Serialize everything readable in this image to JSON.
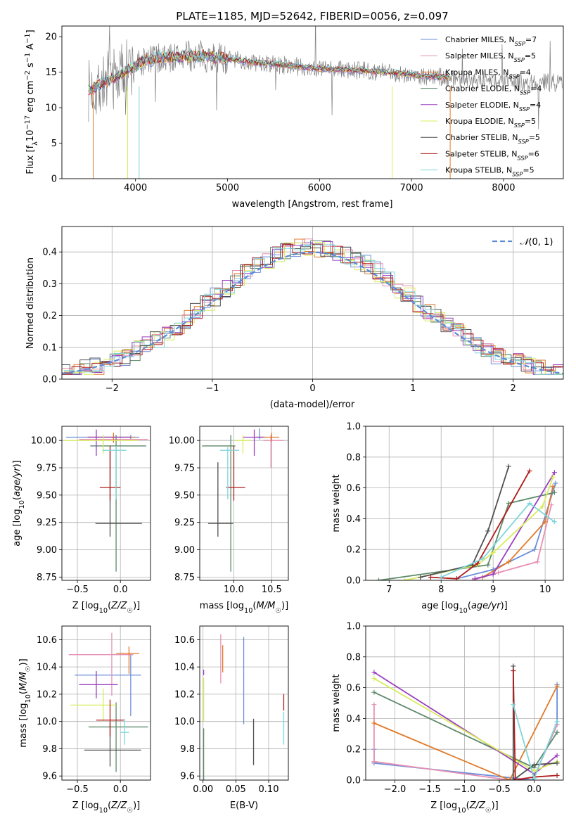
{
  "title": "PLATE=1185, MJD=52642, FIBERID=0056, z=0.097",
  "colors": {
    "Chabrier MILES": "#6a8ed8",
    "Salpeter MILES": "#e78fb3",
    "Kroupa MILES": "#e07a2a",
    "Chabrier ELODIE": "#5d8a6a",
    "Salpeter ELODIE": "#9a3fc0",
    "Kroupa ELODIE": "#d8ec5c",
    "Chabrier STELIB": "#505050",
    "Salpeter STELIB": "#b01c1c",
    "Kroupa STELIB": "#7fd6da"
  },
  "chart_data": [
    {
      "id": "spectrum",
      "type": "line",
      "xlabel": "wavelength [Angstrom, rest frame]",
      "ylabel": "Flux [f_λ 10^-17 erg cm^-2 s^-1 A^-1]",
      "xlim": [
        3200,
        8650
      ],
      "ylim": [
        0,
        21.5
      ],
      "xticks": [
        4000,
        5000,
        6000,
        7000,
        8000
      ],
      "yticks": [
        0,
        5,
        10,
        15,
        20
      ],
      "legend_position": "right",
      "legend": [
        {
          "model": "Chabrier MILES",
          "nssp": "7"
        },
        {
          "model": "Salpeter MILES",
          "nssp": "5"
        },
        {
          "model": "Kroupa MILES",
          "nssp": "4"
        },
        {
          "model": "Chabrier ELODIE",
          "nssp": "4"
        },
        {
          "model": "Salpeter ELODIE",
          "nssp": "4"
        },
        {
          "model": "Kroupa ELODIE",
          "nssp": "5"
        },
        {
          "model": "Chabrier STELIB",
          "nssp": "5"
        },
        {
          "model": "Salpeter STELIB",
          "nssp": "6"
        },
        {
          "model": "Kroupa STELIB",
          "nssp": "5"
        }
      ],
      "continuum": {
        "x": [
          3500,
          3700,
          3900,
          4100,
          4300,
          4500,
          4700,
          4900,
          5100,
          5300,
          5500,
          5700,
          5900,
          6100,
          6300,
          6500,
          6700,
          6900,
          7100,
          7300,
          7500,
          7700,
          7900,
          8100,
          8300,
          8600
        ],
        "y": [
          12.4,
          13.8,
          15.2,
          16.6,
          17.0,
          17.2,
          17.3,
          17.0,
          16.7,
          16.3,
          16.1,
          15.9,
          15.6,
          15.4,
          15.3,
          15.2,
          15.0,
          14.8,
          14.5,
          14.3,
          14.2,
          14.0,
          13.8,
          13.7,
          13.6,
          13.5
        ]
      },
      "data_range": [
        3490,
        8640
      ],
      "model_range": [
        3490,
        7420
      ]
    },
    {
      "id": "residuals",
      "type": "line",
      "xlabel": "(data-model)/error",
      "ylabel": "Normed distribution",
      "xlim": [
        -2.5,
        2.5
      ],
      "ylim": [
        0,
        0.48
      ],
      "xticks": [
        -2,
        -1,
        0,
        1,
        2
      ],
      "yticks": [
        0.0,
        0.1,
        0.2,
        0.3,
        0.4
      ],
      "legend": [
        "N(0,1)"
      ],
      "legend_position": "top-right",
      "grid": true
    },
    {
      "id": "age-vs-Z",
      "type": "scatter",
      "xlabel": "Z [log10(Z/Z☉)]",
      "ylabel": "age  [log10(age/yr)]",
      "xlim": [
        -0.68,
        0.35
      ],
      "ylim": [
        8.72,
        10.13
      ],
      "xticks": [
        -0.5,
        0.0
      ],
      "yticks": [
        8.75,
        9.0,
        9.25,
        9.5,
        9.75,
        10.0
      ],
      "grid": true,
      "points": [
        {
          "model": "Chabrier MILES",
          "x": 0.12,
          "y": 10.03,
          "xerr": [
            0.75,
            0.1
          ],
          "yerr": [
            0.02,
            0.02
          ]
        },
        {
          "model": "Salpeter MILES",
          "x": -0.08,
          "y": 10.01,
          "xerr": [
            0.4,
            0.4
          ],
          "yerr": [
            0.03,
            0.03
          ]
        },
        {
          "model": "Kroupa MILES",
          "x": -0.08,
          "y": 10.03,
          "xerr": [
            0.3,
            0.25
          ],
          "yerr": [
            0.05,
            0.04
          ]
        },
        {
          "model": "Chabrier ELODIE",
          "x": -0.05,
          "y": 9.95,
          "xerr": [
            0.3,
            0.35
          ],
          "yerr": [
            1.15,
            0.1
          ]
        },
        {
          "model": "Salpeter ELODIE",
          "x": -0.28,
          "y": 10.03,
          "xerr": [
            0.1,
            0.4
          ],
          "yerr": [
            0.17,
            0.07
          ]
        },
        {
          "model": "Kroupa ELODIE",
          "x": -0.2,
          "y": 10.0,
          "xerr": [
            0.45,
            0.4
          ],
          "yerr": [
            0.12,
            0.05
          ]
        },
        {
          "model": "Chabrier STELIB",
          "x": -0.12,
          "y": 9.24,
          "xerr": [
            0.17,
            0.37
          ],
          "yerr": [
            0.12,
            0.68
          ]
        },
        {
          "model": "Salpeter STELIB",
          "x": -0.12,
          "y": 9.57,
          "xerr": [
            0.12,
            0.12
          ],
          "yerr": [
            0.12,
            0.38
          ]
        },
        {
          "model": "Kroupa STELIB",
          "x": -0.05,
          "y": 9.91,
          "xerr": [
            0.16,
            0.12
          ],
          "yerr": [
            0.45,
            0.04
          ]
        }
      ]
    },
    {
      "id": "age-vs-mass",
      "type": "scatter",
      "xlabel": "mass [log10(M/M☉)]",
      "ylabel": "",
      "xlim": [
        9.55,
        10.72
      ],
      "ylim": [
        8.72,
        10.13
      ],
      "xticks": [
        10.0,
        10.5
      ],
      "yticks": [
        8.75,
        9.0,
        9.25,
        9.5,
        9.75,
        10.0
      ],
      "grid": true,
      "points": [
        {
          "model": "Chabrier MILES",
          "x": 10.34,
          "y": 10.03,
          "xerr": [
            0.05,
            0.08
          ],
          "yerr": [
            0.02,
            0.08
          ]
        },
        {
          "model": "Salpeter MILES",
          "x": 10.49,
          "y": 10.0,
          "xerr": [
            0.1,
            0.17
          ],
          "yerr": [
            0.25,
            0.05
          ]
        },
        {
          "model": "Kroupa MILES",
          "x": 10.5,
          "y": 10.03,
          "xerr": [
            0.18,
            0.1
          ],
          "yerr": [
            0.04,
            0.04
          ]
        },
        {
          "model": "Chabrier ELODIE",
          "x": 9.96,
          "y": 9.95,
          "xerr": [
            0.38,
            0.06
          ],
          "yerr": [
            1.15,
            0.1
          ]
        },
        {
          "model": "Salpeter ELODIE",
          "x": 10.27,
          "y": 10.03,
          "xerr": [
            0.15,
            0.12
          ],
          "yerr": [
            0.17,
            0.07
          ]
        },
        {
          "model": "Kroupa ELODIE",
          "x": 10.12,
          "y": 10.0,
          "xerr": [
            0.1,
            0.1
          ],
          "yerr": [
            0.12,
            0.05
          ]
        },
        {
          "model": "Chabrier STELIB",
          "x": 9.79,
          "y": 9.24,
          "xerr": [
            0.13,
            0.2
          ],
          "yerr": [
            0.12,
            0.56
          ]
        },
        {
          "model": "Salpeter STELIB",
          "x": 10.0,
          "y": 9.57,
          "xerr": [
            0.1,
            0.15
          ],
          "yerr": [
            0.12,
            0.38
          ]
        },
        {
          "model": "Kroupa STELIB",
          "x": 9.92,
          "y": 9.91,
          "xerr": [
            0.1,
            0.15
          ],
          "yerr": [
            0.45,
            0.03
          ]
        }
      ]
    },
    {
      "id": "massweight-vs-age",
      "type": "line",
      "xlabel": "age  [log10(age/yr)]",
      "ylabel": "mass weight",
      "xlim": [
        6.55,
        10.35
      ],
      "ylim": [
        0,
        1.0
      ],
      "xticks": [
        7,
        8,
        9,
        10
      ],
      "yticks": [
        0.0,
        0.2,
        0.4,
        0.6,
        0.8,
        1.0
      ],
      "grid": true,
      "series": [
        {
          "name": "Chabrier MILES",
          "x": [
            8.3,
            9.0,
            9.8,
            10.2
          ],
          "y": [
            0.01,
            0.07,
            0.2,
            0.63
          ]
        },
        {
          "name": "Salpeter MILES",
          "x": [
            8.6,
            9.1,
            9.85,
            10.12
          ],
          "y": [
            0.0,
            0.05,
            0.12,
            0.49
          ]
        },
        {
          "name": "Kroupa MILES",
          "x": [
            8.8,
            9.3,
            10.0,
            10.15
          ],
          "y": [
            0.02,
            0.12,
            0.38,
            0.61
          ]
        },
        {
          "name": "Chabrier ELODIE",
          "x": [
            6.8,
            8.9,
            9.3,
            10.18
          ],
          "y": [
            0.0,
            0.1,
            0.5,
            0.57
          ]
        },
        {
          "name": "Salpeter ELODIE",
          "x": [
            8.65,
            9.0,
            10.18
          ],
          "y": [
            0.01,
            0.04,
            0.7
          ]
        },
        {
          "name": "Kroupa ELODIE",
          "x": [
            7.3,
            8.7,
            9.0,
            9.95,
            10.15
          ],
          "y": [
            0.0,
            0.1,
            0.18,
            0.48,
            0.67
          ]
        },
        {
          "name": "Chabrier STELIB",
          "x": [
            7.6,
            8.6,
            8.9,
            9.3
          ],
          "y": [
            0.02,
            0.1,
            0.32,
            0.74
          ]
        },
        {
          "name": "Salpeter STELIB",
          "x": [
            7.8,
            8.3,
            8.7,
            9.7
          ],
          "y": [
            0.02,
            0.01,
            0.11,
            0.71
          ]
        },
        {
          "name": "Kroupa STELIB",
          "x": [
            8.0,
            8.8,
            9.7,
            10.18
          ],
          "y": [
            0.02,
            0.14,
            0.5,
            0.38
          ]
        }
      ]
    },
    {
      "id": "mass-vs-Z",
      "type": "scatter",
      "xlabel": "Z [log10(Z/Z☉)]",
      "ylabel": "mass [log10(M/M☉)]",
      "xlim": [
        -0.68,
        0.35
      ],
      "ylim": [
        9.57,
        10.7
      ],
      "xticks": [
        -0.5,
        0.0
      ],
      "yticks": [
        9.6,
        9.8,
        10.0,
        10.2,
        10.4,
        10.6
      ],
      "grid": true,
      "points": [
        {
          "model": "Chabrier MILES",
          "x": 0.12,
          "y": 10.34,
          "xerr": [
            0.65,
            0.12
          ],
          "yerr": [
            0.3,
            0.15
          ]
        },
        {
          "model": "Salpeter MILES",
          "x": -0.1,
          "y": 10.49,
          "xerr": [
            0.5,
            0.25
          ],
          "yerr": [
            0.3,
            0.16
          ]
        },
        {
          "model": "Kroupa MILES",
          "x": 0.1,
          "y": 10.5,
          "xerr": [
            0.15,
            0.12
          ],
          "yerr": [
            0.15,
            0.05
          ]
        },
        {
          "model": "Chabrier ELODIE",
          "x": -0.05,
          "y": 9.96,
          "xerr": [
            0.32,
            0.37
          ],
          "yerr": [
            0.33,
            0.18
          ]
        },
        {
          "model": "Salpeter ELODIE",
          "x": -0.28,
          "y": 10.27,
          "xerr": [
            0.2,
            0.25
          ],
          "yerr": [
            0.1,
            0.1
          ]
        },
        {
          "model": "Kroupa ELODIE",
          "x": -0.2,
          "y": 10.12,
          "xerr": [
            0.38,
            0.15
          ],
          "yerr": [
            0.12,
            0.12
          ]
        },
        {
          "model": "Chabrier STELIB",
          "x": -0.12,
          "y": 9.79,
          "xerr": [
            0.3,
            0.36
          ],
          "yerr": [
            0.12,
            0.2
          ]
        },
        {
          "model": "Salpeter STELIB",
          "x": -0.12,
          "y": 10.01,
          "xerr": [
            0.16,
            0.16
          ],
          "yerr": [
            0.12,
            0.15
          ]
        },
        {
          "model": "Kroupa STELIB",
          "x": 0.05,
          "y": 9.92,
          "xerr": [
            0.05,
            0.05
          ],
          "yerr": [
            0.09,
            0.1
          ]
        }
      ]
    },
    {
      "id": "mass-vs-EBV",
      "type": "scatter",
      "xlabel": "E(B-V)",
      "ylabel": "",
      "xlim": [
        -0.005,
        0.13
      ],
      "ylim": [
        9.57,
        10.7
      ],
      "xticks": [
        0.0,
        0.05,
        0.1
      ],
      "yticks": [
        9.6,
        9.8,
        10.0,
        10.2,
        10.4,
        10.6
      ],
      "grid": true,
      "points": [
        {
          "model": "Chabrier MILES",
          "x": 0.062,
          "y": 10.3,
          "yerr": [
            0.32,
            0.32
          ]
        },
        {
          "model": "Salpeter MILES",
          "x": 0.027,
          "y": 10.46,
          "yerr": [
            0.18,
            0.18
          ]
        },
        {
          "model": "Kroupa MILES",
          "x": 0.03,
          "y": 10.46,
          "yerr": [
            0.1,
            0.1
          ]
        },
        {
          "model": "Chabrier ELODIE",
          "x": 0.001,
          "y": 9.75,
          "yerr": [
            0.18,
            0.2
          ]
        },
        {
          "model": "Salpeter ELODIE",
          "x": 0.001,
          "y": 10.36,
          "yerr": [
            0.02,
            0.02
          ]
        },
        {
          "model": "Kroupa ELODIE",
          "x": 0.001,
          "y": 10.12,
          "yerr": [
            0.12,
            0.2
          ]
        },
        {
          "model": "Chabrier STELIB",
          "x": 0.077,
          "y": 9.85,
          "yerr": [
            0.17,
            0.17
          ]
        },
        {
          "model": "Salpeter STELIB",
          "x": 0.123,
          "y": 10.14,
          "yerr": [
            0.06,
            0.06
          ]
        },
        {
          "model": "Kroupa STELIB",
          "x": 0.123,
          "y": 9.95,
          "yerr": [
            0.12,
            0.12
          ]
        }
      ]
    },
    {
      "id": "massweight-vs-Z",
      "type": "line",
      "xlabel": "Z [log10(Z/Z☉)]",
      "ylabel": "mass weight",
      "xlim": [
        -2.42,
        0.42
      ],
      "ylim": [
        0,
        1.0
      ],
      "xticks": [
        -2.0,
        -1.5,
        -1.0,
        -0.5,
        0.0
      ],
      "yticks": [
        0.0,
        0.2,
        0.4,
        0.6,
        0.8,
        1.0
      ],
      "grid": true,
      "series": [
        {
          "name": "Chabrier MILES",
          "x": [
            -2.3,
            -2.3,
            -0.02,
            0.33,
            0.33
          ],
          "y": [
            0.2,
            0.11,
            0.0,
            0.36,
            0.62
          ]
        },
        {
          "name": "Salpeter MILES",
          "x": [
            -2.3,
            -2.3,
            -0.35,
            0.0,
            0.33
          ],
          "y": [
            0.49,
            0.12,
            0.0,
            0.02,
            0.36
          ]
        },
        {
          "name": "Kroupa MILES",
          "x": [
            -2.3,
            -0.35,
            0.33
          ],
          "y": [
            0.37,
            0.0,
            0.61
          ]
        },
        {
          "name": "Chabrier ELODIE",
          "x": [
            -2.3,
            0.0,
            0.33
          ],
          "y": [
            0.57,
            0.08,
            0.31
          ]
        },
        {
          "name": "Salpeter ELODIE",
          "x": [
            -2.3,
            0.0,
            0.33
          ],
          "y": [
            0.7,
            0.04,
            0.16
          ]
        },
        {
          "name": "Kroupa ELODIE",
          "x": [
            -2.3,
            0.0,
            0.33
          ],
          "y": [
            0.66,
            0.06,
            0.12
          ]
        },
        {
          "name": "Chabrier STELIB",
          "x": [
            -0.3,
            -0.3,
            0.0,
            0.33
          ],
          "y": [
            0.74,
            0.0,
            0.1,
            0.11
          ]
        },
        {
          "name": "Salpeter STELIB",
          "x": [
            -0.3,
            -0.27,
            0.0,
            0.33
          ],
          "y": [
            0.71,
            0.0,
            0.02,
            0.03
          ]
        },
        {
          "name": "Kroupa STELIB",
          "x": [
            -0.3,
            0.0,
            0.33
          ],
          "y": [
            0.49,
            0.01,
            0.38
          ]
        }
      ]
    }
  ]
}
